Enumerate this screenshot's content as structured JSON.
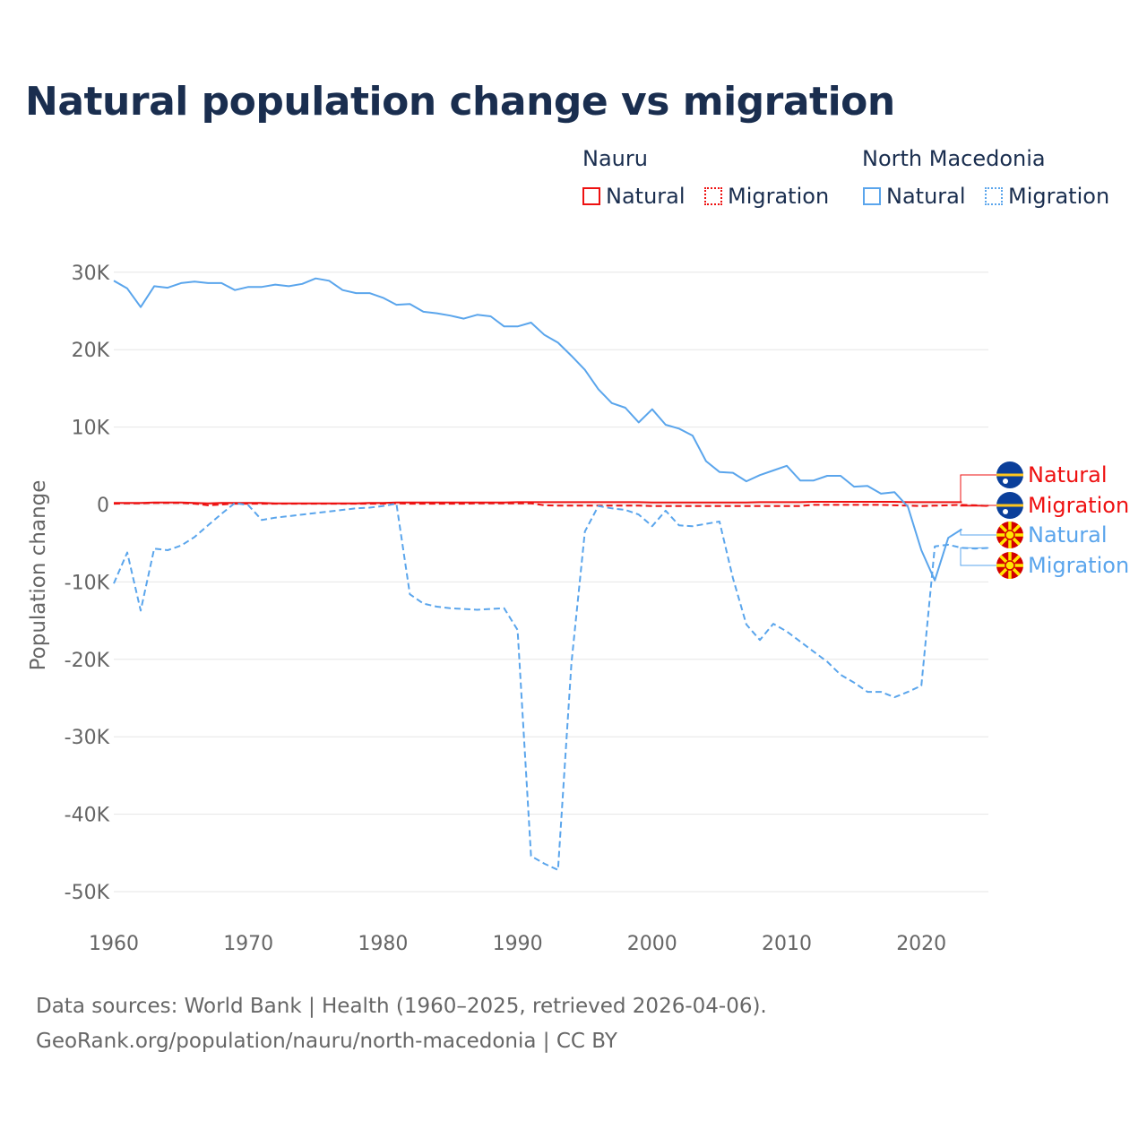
{
  "chart_data": {
    "type": "line",
    "title": "Natural population change vs migration",
    "ylabel": "Population change",
    "xlabel": "",
    "xlim": [
      1960,
      2025
    ],
    "ylim": [
      -50000,
      30000
    ],
    "x_ticks": [
      "1960",
      "1970",
      "1980",
      "1990",
      "2000",
      "2010",
      "2020"
    ],
    "x_tick_values": [
      1960,
      1970,
      1980,
      1990,
      2000,
      2010,
      2020
    ],
    "y_ticks": [
      "30K",
      "20K",
      "10K",
      "0",
      "-10K",
      "-20K",
      "-30K",
      "-40K",
      "-50K"
    ],
    "y_tick_values": [
      30000,
      20000,
      10000,
      0,
      -10000,
      -20000,
      -30000,
      -40000,
      -50000
    ],
    "grid": true,
    "legend_placement": "top-right",
    "legend_groups": [
      {
        "name": "Nauru",
        "entries": [
          "Natural",
          "Migration"
        ]
      },
      {
        "name": "North Macedonia",
        "entries": [
          "Natural",
          "Migration"
        ]
      }
    ],
    "series": [
      {
        "name": "Natural",
        "country": "Nauru",
        "color": "#ee1111",
        "dash": false,
        "x_start": 1960,
        "values": [
          200,
          200,
          200,
          250,
          250,
          250,
          200,
          150,
          200,
          200,
          200,
          200,
          150,
          150,
          150,
          150,
          150,
          150,
          150,
          200,
          200,
          250,
          250,
          250,
          250,
          250,
          250,
          250,
          250,
          250,
          300,
          300,
          300,
          300,
          300,
          300,
          300,
          300,
          300,
          300,
          250,
          250,
          250,
          250,
          250,
          250,
          250,
          250,
          300,
          300,
          300,
          300,
          350,
          350,
          350,
          350,
          350,
          350,
          350,
          300,
          300,
          300,
          300,
          300
        ]
      },
      {
        "name": "Migration",
        "country": "Nauru",
        "color": "#ee1111",
        "dash": true,
        "x_start": 1960,
        "values": [
          100,
          150,
          150,
          200,
          200,
          200,
          100,
          -100,
          0,
          100,
          100,
          100,
          100,
          100,
          100,
          100,
          100,
          100,
          100,
          100,
          100,
          150,
          100,
          100,
          100,
          100,
          100,
          150,
          150,
          150,
          150,
          150,
          -100,
          -150,
          -150,
          -150,
          -150,
          -150,
          -150,
          -150,
          -200,
          -200,
          -200,
          -200,
          -200,
          -200,
          -200,
          -200,
          -200,
          -200,
          -200,
          -200,
          -50,
          -50,
          -50,
          -50,
          -50,
          -50,
          -100,
          -150,
          -200,
          -150,
          -100,
          -50,
          -100,
          -200
        ]
      },
      {
        "name": "Natural",
        "country": "North Macedonia",
        "color": "#5aa5ec",
        "dash": false,
        "x_start": 1960,
        "values": [
          28900,
          27900,
          25500,
          28200,
          28000,
          28600,
          28800,
          28600,
          28600,
          27700,
          28100,
          28100,
          28400,
          28200,
          28500,
          29200,
          28900,
          27700,
          27300,
          27300,
          26700,
          25800,
          25900,
          24900,
          24700,
          24400,
          24000,
          24500,
          24300,
          23000,
          23000,
          23500,
          21900,
          20900,
          19200,
          17400,
          14900,
          13100,
          12500,
          10600,
          12300,
          10300,
          9800,
          8900,
          5600,
          4200,
          4100,
          3000,
          3800,
          4400,
          5000,
          3100,
          3100,
          3700,
          3700,
          2300,
          2400,
          1400,
          1600,
          -300,
          -5900,
          -9800,
          -4300,
          -3200
        ]
      },
      {
        "name": "Migration",
        "country": "North Macedonia",
        "color": "#5aa5ec",
        "dash": true,
        "x_start": 1960,
        "values": [
          -10200,
          -6200,
          -13700,
          -5700,
          -5900,
          -5300,
          -4200,
          -2700,
          -1200,
          200,
          -100,
          -2000,
          -1700,
          -1500,
          -1300,
          -1100,
          -900,
          -700,
          -500,
          -400,
          -200,
          100,
          -11600,
          -12800,
          -13200,
          -13400,
          -13500,
          -13600,
          -13500,
          -13400,
          -16200,
          -45400,
          -46400,
          -47200,
          -20500,
          -3500,
          -200,
          -500,
          -700,
          -1300,
          -2800,
          -800,
          -2700,
          -2800,
          -2500,
          -2200,
          -9500,
          -15500,
          -17500,
          -15400,
          -16400,
          -17700,
          -19000,
          -20300,
          -22000,
          -23000,
          -24200,
          -24200,
          -24900,
          -24200,
          -23400,
          -5400,
          -5200,
          -5600,
          -5700,
          -5600
        ]
      }
    ],
    "end_labels": [
      "Natural",
      "Migration",
      "Natural",
      "Migration"
    ]
  },
  "legend": {
    "group1": "Nauru",
    "group2": "North Macedonia",
    "natural": "Natural",
    "migration": "Migration"
  },
  "footer": {
    "line1": "Data sources: World Bank | Health (1960–2025, retrieved 2026-04-06).",
    "line2": "GeoRank.org/population/nauru/north-macedonia | CC BY"
  }
}
